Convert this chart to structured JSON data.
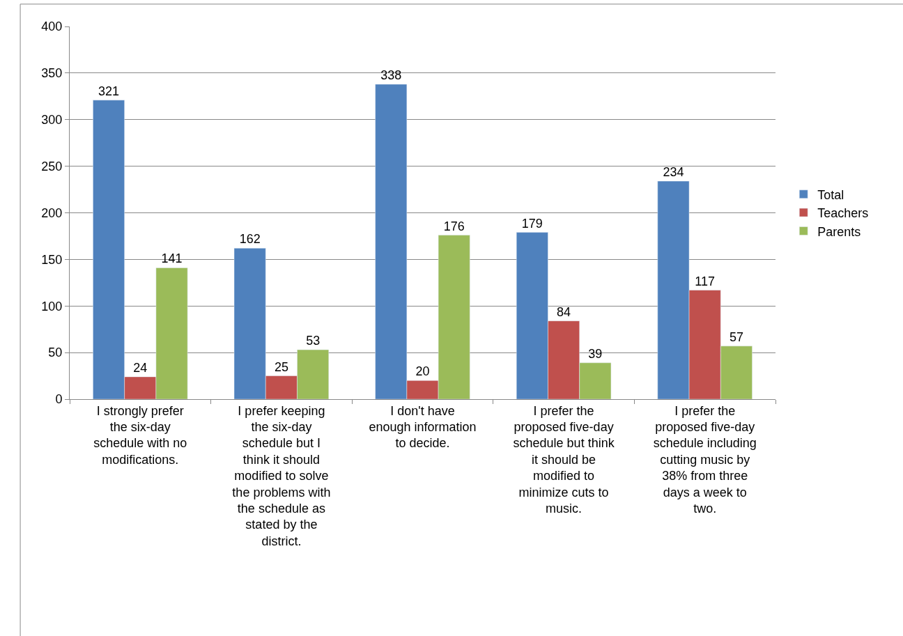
{
  "chart_data": {
    "type": "bar",
    "categories": [
      "I strongly prefer the six-day schedule with no modifications.",
      "I prefer keeping the six-day schedule but I think it should modified to solve the problems with the schedule as stated by the district.",
      "I don't have enough information to decide.",
      "I prefer the proposed five-day schedule but think it should be modified to minimize cuts to music.",
      "I prefer the proposed five-day schedule including cutting music by 38% from three days a week to two."
    ],
    "series": [
      {
        "name": "Total",
        "color": "#4f81bd",
        "values": [
          321,
          162,
          338,
          179,
          234
        ]
      },
      {
        "name": "Teachers",
        "color": "#c0504d",
        "values": [
          24,
          25,
          20,
          84,
          117
        ]
      },
      {
        "name": "Parents",
        "color": "#9bbb59",
        "values": [
          141,
          53,
          176,
          39,
          57
        ]
      }
    ],
    "ylim": [
      0,
      400
    ],
    "yticks": [
      0,
      50,
      100,
      150,
      200,
      250,
      300,
      350,
      400
    ],
    "grid": "y",
    "legend": "right",
    "data_labels": true
  }
}
